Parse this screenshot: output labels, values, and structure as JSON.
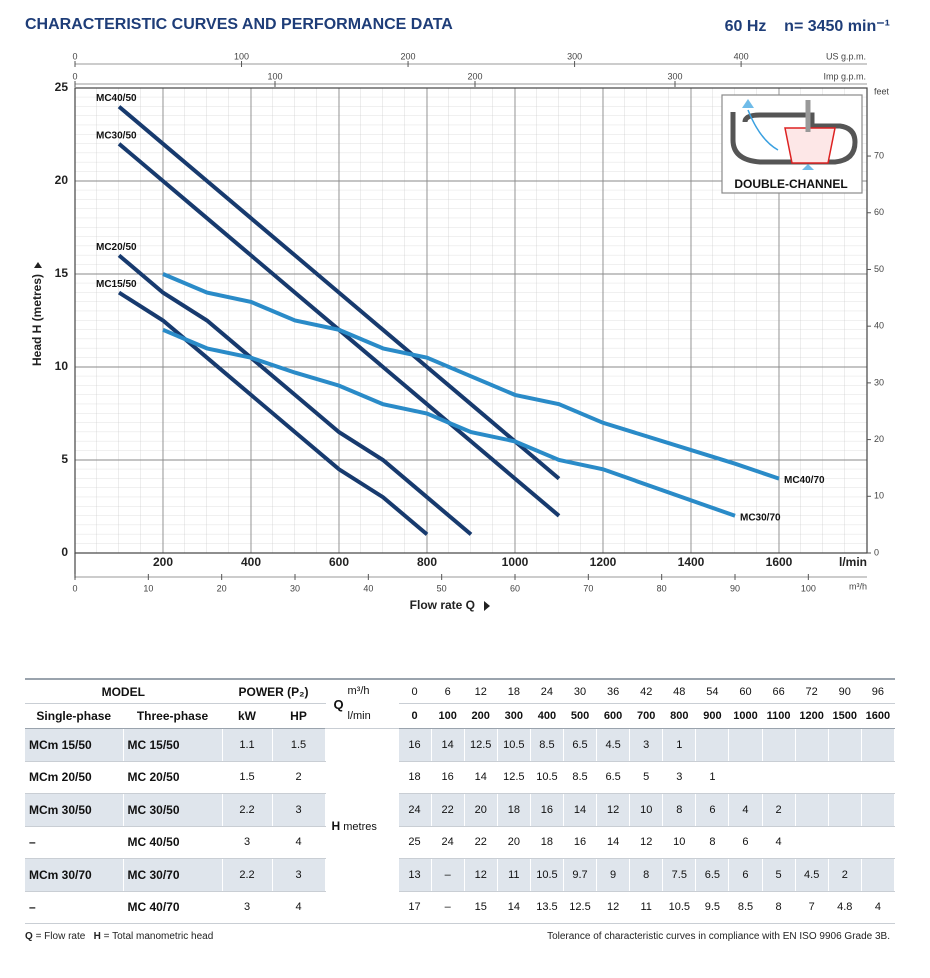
{
  "header": {
    "title": "CHARACTERISTIC CURVES AND PERFORMANCE DATA",
    "frequency": "60 Hz",
    "speed": "n= 3450 min⁻¹"
  },
  "chart_data": {
    "type": "line",
    "x_label": "Flow rate Q",
    "x_unit": "l/min",
    "y_label": "Head H (metres)",
    "xlim": [
      0,
      1800
    ],
    "xticks": [
      200,
      400,
      600,
      800,
      1000,
      1200,
      1400,
      1600
    ],
    "ylim": [
      0,
      25
    ],
    "yticks": [
      0,
      5,
      10,
      15,
      20,
      25
    ],
    "grid": true,
    "secondary_axes": [
      {
        "position": "top",
        "label": "US g.p.m.",
        "lim": [
          0,
          475.6
        ],
        "ticks": [
          0,
          100,
          200,
          300,
          400
        ]
      },
      {
        "position": "top",
        "label": "Imp g.p.m.",
        "lim": [
          0,
          396
        ],
        "ticks": [
          0,
          100,
          200,
          300
        ]
      },
      {
        "position": "bottom",
        "label": "m³/h",
        "lim": [
          0,
          108
        ],
        "ticks": [
          0,
          10,
          20,
          30,
          40,
          50,
          60,
          70,
          80,
          90,
          100
        ]
      },
      {
        "position": "right",
        "label": "feet",
        "lim": [
          0,
          82
        ],
        "ticks": [
          0,
          10,
          20,
          30,
          40,
          50,
          60,
          70
        ]
      }
    ],
    "inset_label": "DOUBLE-CHANNEL",
    "series": [
      {
        "name": "MC40/50",
        "color": "#173a6e",
        "x": [
          100,
          200,
          300,
          400,
          500,
          600,
          700,
          800,
          900,
          1000,
          1100
        ],
        "values": [
          24,
          22,
          20,
          18,
          16,
          14,
          12,
          10,
          8,
          6,
          4
        ]
      },
      {
        "name": "MC30/50",
        "color": "#173a6e",
        "x": [
          100,
          200,
          300,
          400,
          500,
          600,
          700,
          800,
          900,
          1000,
          1100
        ],
        "values": [
          22,
          20,
          18,
          16,
          14,
          12,
          10,
          8,
          6,
          4,
          2
        ]
      },
      {
        "name": "MC20/50",
        "color": "#173a6e",
        "x": [
          100,
          200,
          300,
          400,
          500,
          600,
          700,
          800,
          900
        ],
        "values": [
          16,
          14,
          12.5,
          10.5,
          8.5,
          6.5,
          5,
          3,
          1
        ]
      },
      {
        "name": "MC15/50",
        "color": "#173a6e",
        "x": [
          100,
          200,
          300,
          400,
          500,
          600,
          700,
          800
        ],
        "values": [
          14,
          12.5,
          10.5,
          8.5,
          6.5,
          4.5,
          3,
          1
        ]
      },
      {
        "name": "MC40/70",
        "color": "#2a8bc8",
        "x": [
          200,
          300,
          400,
          500,
          600,
          700,
          800,
          900,
          1000,
          1100,
          1200,
          1500,
          1600
        ],
        "values": [
          15,
          14,
          13.5,
          12.5,
          12,
          11,
          10.5,
          9.5,
          8.5,
          8,
          7,
          4.8,
          4
        ]
      },
      {
        "name": "MC30/70",
        "color": "#2a8bc8",
        "x": [
          200,
          300,
          400,
          500,
          600,
          700,
          800,
          900,
          1000,
          1100,
          1200,
          1500
        ],
        "values": [
          12,
          11,
          10.5,
          9.7,
          9,
          8,
          7.5,
          6.5,
          6,
          5,
          4.5,
          2
        ]
      }
    ]
  },
  "table": {
    "model_header": "MODEL",
    "power_header": "POWER (P₂)",
    "q_label": "Q",
    "m3h_label": "m³/h",
    "lmin_label": "l/min",
    "single_phase_header": "Single-phase",
    "three_phase_header": "Three-phase",
    "kw_header": "kW",
    "hp_header": "HP",
    "h_label": "H",
    "h_unit": "metres",
    "m3h": [
      0,
      6,
      12,
      18,
      24,
      30,
      36,
      42,
      48,
      54,
      60,
      66,
      72,
      90,
      96
    ],
    "lmin": [
      0,
      100,
      200,
      300,
      400,
      500,
      600,
      700,
      800,
      900,
      1000,
      1100,
      1200,
      1500,
      1600
    ],
    "rows": [
      {
        "single_phase": "MCm 15/50",
        "three_phase": "MC 15/50",
        "kw": 1.1,
        "hp": 1.5,
        "head": [
          16,
          14,
          12.5,
          10.5,
          8.5,
          6.5,
          4.5,
          3,
          1,
          null,
          null,
          null,
          null,
          null,
          null
        ]
      },
      {
        "single_phase": "MCm 20/50",
        "three_phase": "MC 20/50",
        "kw": 1.5,
        "hp": 2,
        "head": [
          18,
          16,
          14,
          12.5,
          10.5,
          8.5,
          6.5,
          5,
          3,
          1,
          null,
          null,
          null,
          null,
          null
        ]
      },
      {
        "single_phase": "MCm 30/50",
        "three_phase": "MC 30/50",
        "kw": 2.2,
        "hp": 3,
        "head": [
          24,
          22,
          20,
          18,
          16,
          14,
          12,
          10,
          8,
          6,
          4,
          2,
          null,
          null,
          null
        ]
      },
      {
        "single_phase": "–",
        "three_phase": "MC 40/50",
        "kw": 3,
        "hp": 4,
        "head": [
          25,
          24,
          22,
          20,
          18,
          16,
          14,
          12,
          10,
          8,
          6,
          4,
          null,
          null,
          null
        ]
      },
      {
        "single_phase": "MCm 30/70",
        "three_phase": "MC 30/70",
        "kw": 2.2,
        "hp": 3,
        "head": [
          13,
          "–",
          12,
          11,
          10.5,
          9.7,
          9,
          8,
          7.5,
          6.5,
          6,
          5,
          4.5,
          2,
          null
        ]
      },
      {
        "single_phase": "–",
        "three_phase": "MC 40/70",
        "kw": 3,
        "hp": 4,
        "head": [
          17,
          "–",
          15,
          14,
          13.5,
          12.5,
          12,
          11,
          10.5,
          9.5,
          8.5,
          8,
          7,
          4.8,
          4
        ]
      }
    ]
  },
  "footer": {
    "q_symbol": "Q",
    "q_text": "= Flow rate",
    "h_symbol": "H",
    "h_text": "= Total manometric head",
    "tolerance": "Tolerance of characteristic curves in compliance with EN ISO 9906 Grade 3B."
  }
}
